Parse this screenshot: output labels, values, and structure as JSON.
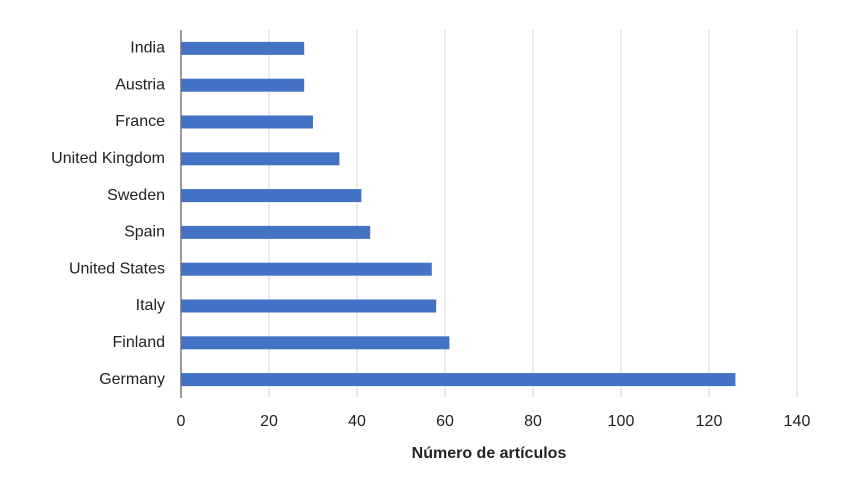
{
  "chart_data": {
    "type": "bar",
    "orientation": "horizontal",
    "x_label": "Número de artículos",
    "categories": [
      "India",
      "Austria",
      "France",
      "United Kingdom",
      "Sweden",
      "Spain",
      "United States",
      "Italy",
      "Finland",
      "Germany"
    ],
    "values": [
      28,
      28,
      30,
      36,
      41,
      43,
      57,
      58,
      61,
      126
    ],
    "color": "#4472c4",
    "xlim": [
      0,
      140
    ],
    "xticks": [
      0,
      20,
      40,
      60,
      80,
      100,
      120,
      140
    ],
    "grid": true
  }
}
